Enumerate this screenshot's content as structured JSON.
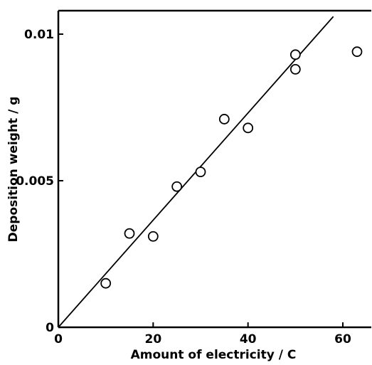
{
  "chart_data": {
    "type": "scatter",
    "title": "",
    "xlabel": "Amount of electricity / C",
    "ylabel": "Deposition weight / g",
    "xlim": [
      0,
      66
    ],
    "ylim": [
      0,
      0.0108
    ],
    "x_ticks": [
      {
        "value": 0,
        "label": "0"
      },
      {
        "value": 20,
        "label": "20"
      },
      {
        "value": 40,
        "label": "40"
      },
      {
        "value": 60,
        "label": "60"
      }
    ],
    "y_ticks": [
      {
        "value": 0,
        "label": "0"
      },
      {
        "value": 0.005,
        "label": "0.005"
      },
      {
        "value": 0.01,
        "label": "0.01"
      }
    ],
    "grid": false,
    "legend": "none",
    "points": [
      {
        "x": 10,
        "y": 0.0015
      },
      {
        "x": 15,
        "y": 0.0032
      },
      {
        "x": 20,
        "y": 0.0031
      },
      {
        "x": 25,
        "y": 0.0048
      },
      {
        "x": 30,
        "y": 0.0053
      },
      {
        "x": 35,
        "y": 0.0071
      },
      {
        "x": 40,
        "y": 0.0068
      },
      {
        "x": 50,
        "y": 0.0093
      },
      {
        "x": 50,
        "y": 0.0088
      },
      {
        "x": 63,
        "y": 0.0094
      }
    ],
    "fit_line": {
      "x1": 0,
      "y1": 0,
      "x2": 58,
      "y2": 0.0106
    }
  }
}
